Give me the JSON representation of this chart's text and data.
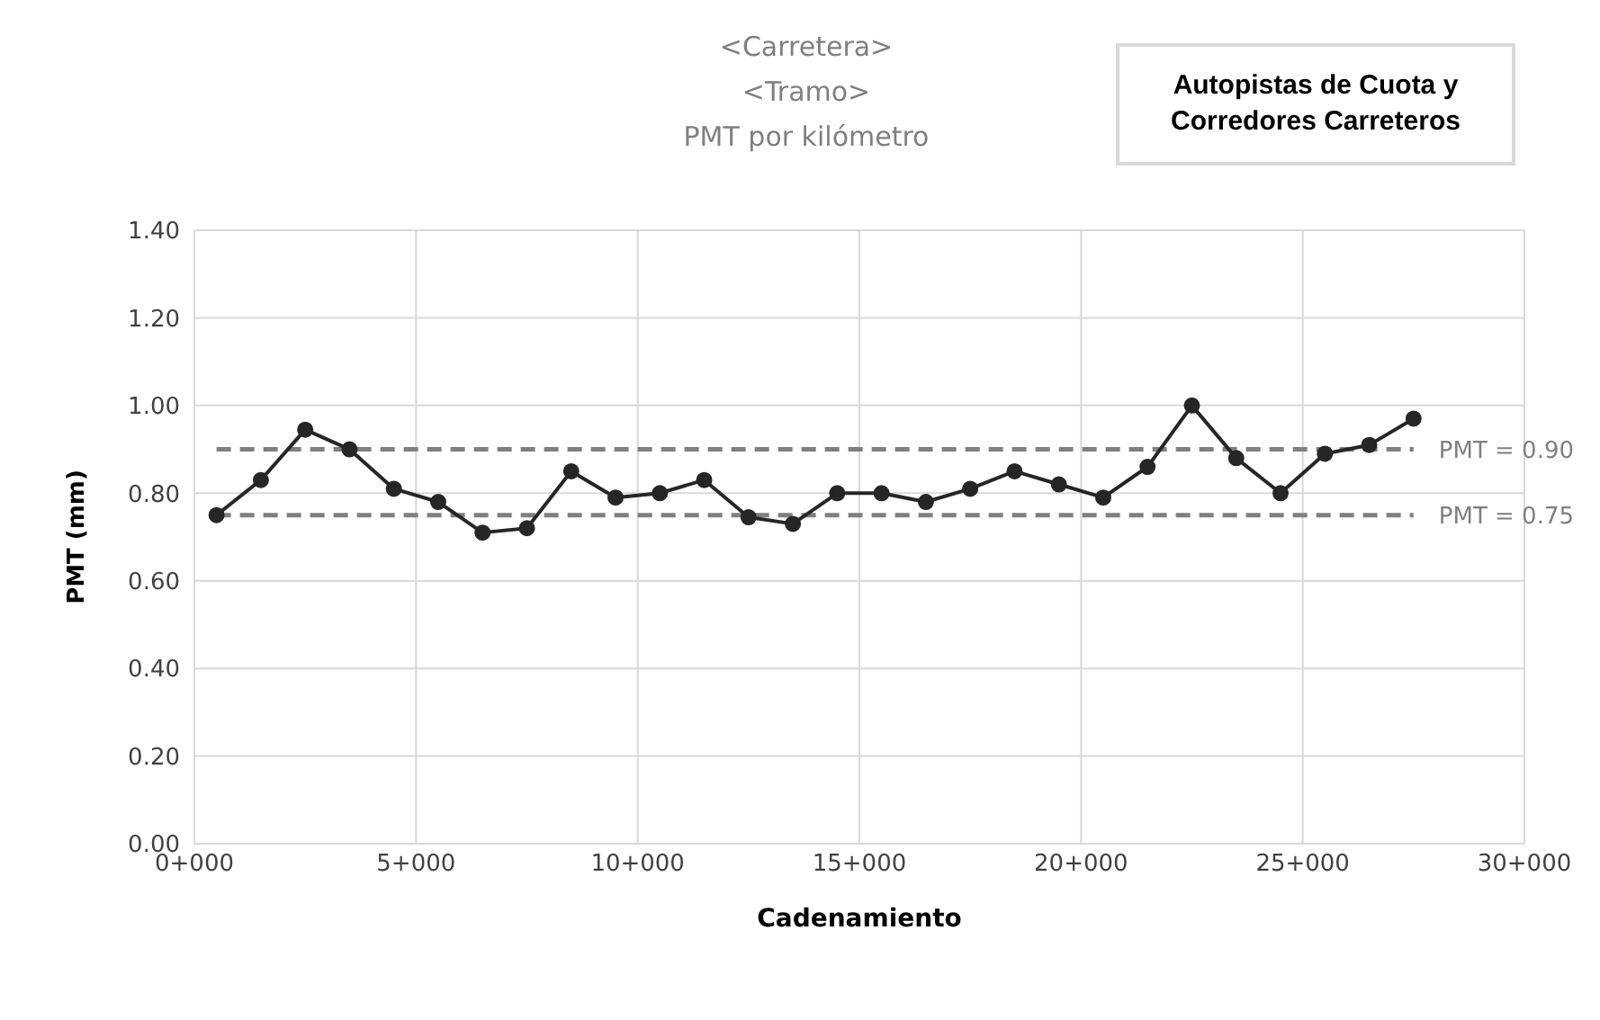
{
  "chart_data": {
    "type": "line",
    "title": "<Carretera>\n<Tramo>\nPMT por kilómetro",
    "xlabel": "Cadenamiento",
    "ylabel": "PMT (mm)",
    "annotations": [
      "Autopistas de Cuota y\nCorredores Carreteros",
      "0+000",
      "5+000",
      "10+000",
      "15+000",
      "20+000",
      "25+000",
      "30+000"
    ],
    "categories": [
      null,
      null,
      null,
      null,
      null,
      null,
      null,
      null,
      null,
      null,
      null,
      null,
      null,
      null,
      null,
      null,
      null,
      null,
      null,
      null,
      null,
      null,
      null,
      null,
      null,
      null,
      null,
      null
    ],
    "series": [
      {
        "color": "#262626",
        "values": [
          0.75,
          0.83,
          0.945,
          0.9,
          0.81,
          0.78,
          0.71,
          0.72,
          0.85,
          0.79,
          0.8,
          0.83,
          0.745,
          0.73,
          0.8,
          0.8,
          0.78,
          0.81,
          0.85,
          0.82,
          0.79,
          0.86,
          1.0,
          0.88,
          0.8,
          0.89,
          0.91,
          0.97
        ]
      }
    ],
    "ylim": [
      0,
      1.4
    ],
    "yticks": [
      {
        "value": 0,
        "label": "0.00"
      },
      {
        "value": 0.2,
        "label": "0.20"
      },
      {
        "value": 0.4,
        "label": "0.40"
      },
      {
        "value": 0.6,
        "label": "0.60"
      },
      {
        "value": 0.8,
        "label": "0.80"
      },
      {
        "value": 1.0,
        "label": "1.00"
      },
      {
        "value": 1.2,
        "label": "1.20"
      },
      {
        "value": 1.4,
        "label": "1.40"
      }
    ],
    "ref_lines": [
      {
        "axis": "y",
        "value": 0.9,
        "label": "PMT = 0.90",
        "color": "#7f7f7f",
        "line_style": "dashed"
      },
      {
        "axis": "y",
        "value": 0.75,
        "label": "PMT = 0.75",
        "color": "#7f7f7f",
        "line_style": "dashed"
      }
    ],
    "grid": true,
    "marker": "circle",
    "line_style": "solid"
  }
}
